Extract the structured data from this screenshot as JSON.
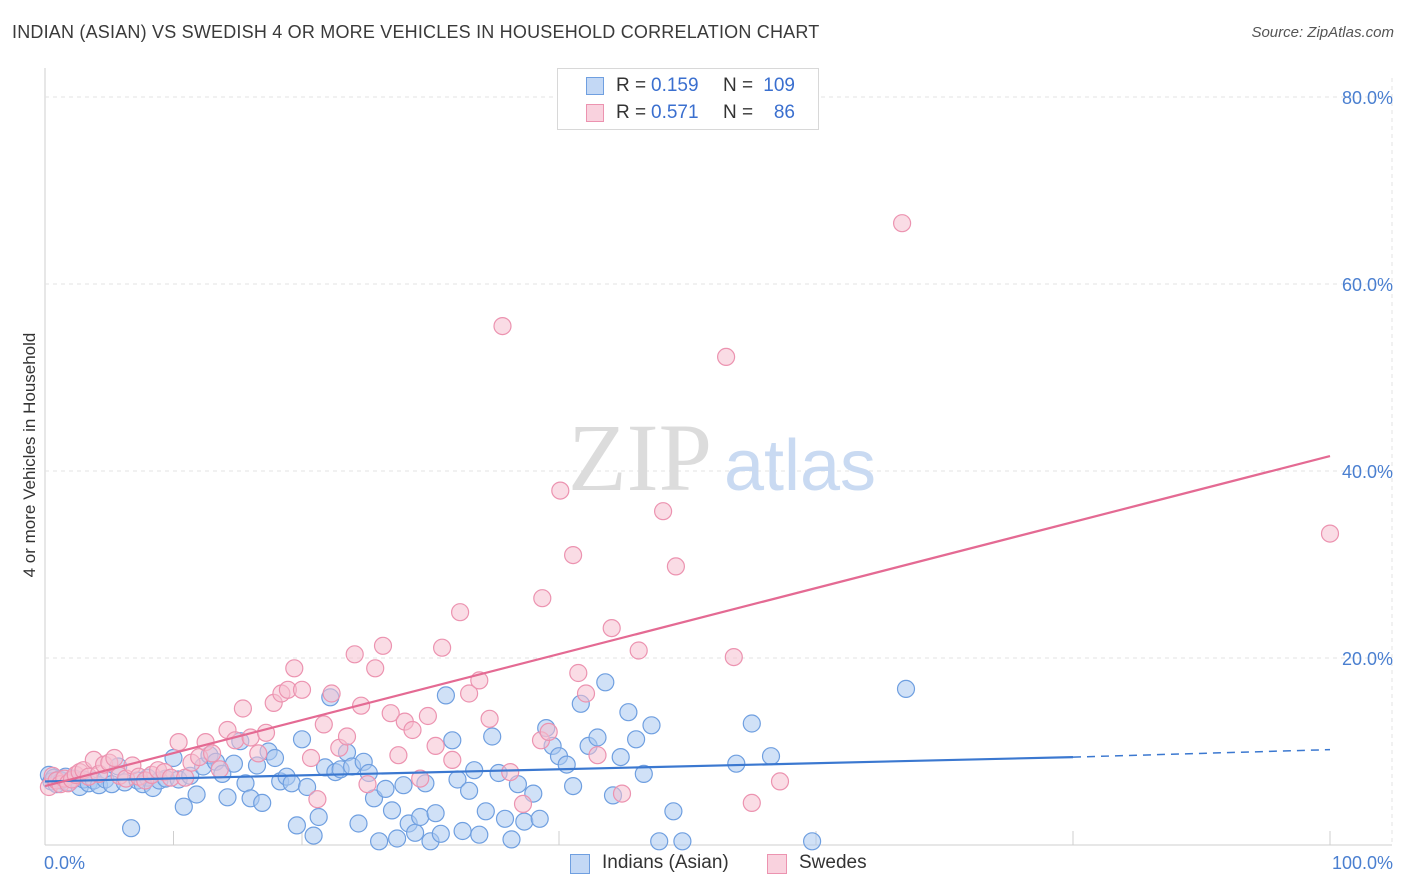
{
  "header": {
    "title": "INDIAN (ASIAN) VS SWEDISH 4 OR MORE VEHICLES IN HOUSEHOLD CORRELATION CHART",
    "source": "Source: ZipAtlas.com"
  },
  "watermark": {
    "zip": "ZIP",
    "atlas": "atlas"
  },
  "legend_top": [
    {
      "r_label": "R =",
      "r_value": "0.159",
      "n_label": "N =",
      "n_value": "109"
    },
    {
      "r_label": "R =",
      "r_value": "0.571",
      "n_label": "N =",
      "n_value": "86"
    }
  ],
  "legend_bottom": [
    "Indians (Asian)",
    "Swedes"
  ],
  "colors": {
    "blue_fill": "#a9c8f0",
    "blue_stroke": "#6f9fe0",
    "blue_line": "#3b78d0",
    "pink_fill": "#f6bfd0",
    "pink_stroke": "#ec93b0",
    "pink_line": "#e46a93",
    "tick_text": "#4a7fd0",
    "grid": "#e3e3e3"
  },
  "chart_data": {
    "type": "scatter",
    "title": "INDIAN (ASIAN) VS SWEDISH 4 OR MORE VEHICLES IN HOUSEHOLD CORRELATION CHART",
    "xlabel": "",
    "ylabel": "4 or more Vehicles in Household",
    "xlim": [
      0,
      100
    ],
    "ylim": [
      0,
      82
    ],
    "x_tick_labels": [
      "0.0%",
      "100.0%"
    ],
    "y_ticks": [
      20,
      40,
      60,
      80
    ],
    "y_tick_labels": [
      "20.0%",
      "40.0%",
      "60.0%",
      "80.0%"
    ],
    "grid": true,
    "legend_position": "top-center",
    "series": [
      {
        "name": "Indians (Asian)",
        "r": 0.159,
        "n": 109,
        "trend": {
          "x0": 0,
          "y0": 6.8,
          "x1": 80,
          "y1": 9.4,
          "dashed_to_x": 100,
          "dashed_y1": 10.2
        },
        "points": [
          [
            0.3,
            7.5
          ],
          [
            0.5,
            6.8
          ],
          [
            0.7,
            7.2
          ],
          [
            0.9,
            6.5
          ],
          [
            1.1,
            7.0
          ],
          [
            1.3,
            6.9
          ],
          [
            1.6,
            7.3
          ],
          [
            1.9,
            6.7
          ],
          [
            2.3,
            7.1
          ],
          [
            2.7,
            6.2
          ],
          [
            3.0,
            7.0
          ],
          [
            3.4,
            6.6
          ],
          [
            3.8,
            6.9
          ],
          [
            4.2,
            6.4
          ],
          [
            4.7,
            7.0
          ],
          [
            5.2,
            6.5
          ],
          [
            5.7,
            8.4
          ],
          [
            6.2,
            6.7
          ],
          [
            6.7,
            1.8
          ],
          [
            7.2,
            6.9
          ],
          [
            7.6,
            6.5
          ],
          [
            8.0,
            7.2
          ],
          [
            8.4,
            6.1
          ],
          [
            8.9,
            6.9
          ],
          [
            9.4,
            7.1
          ],
          [
            10.0,
            9.3
          ],
          [
            10.4,
            7.0
          ],
          [
            10.8,
            4.1
          ],
          [
            11.3,
            7.4
          ],
          [
            11.8,
            5.4
          ],
          [
            12.3,
            8.4
          ],
          [
            12.8,
            9.6
          ],
          [
            13.3,
            8.9
          ],
          [
            13.8,
            7.6
          ],
          [
            14.2,
            5.1
          ],
          [
            14.7,
            8.7
          ],
          [
            15.2,
            11.1
          ],
          [
            15.6,
            6.6
          ],
          [
            16.0,
            5.0
          ],
          [
            16.5,
            8.5
          ],
          [
            16.9,
            4.5
          ],
          [
            17.4,
            10.0
          ],
          [
            17.9,
            9.3
          ],
          [
            18.3,
            6.8
          ],
          [
            18.8,
            7.3
          ],
          [
            19.2,
            6.6
          ],
          [
            19.6,
            2.1
          ],
          [
            20.0,
            11.3
          ],
          [
            20.4,
            6.2
          ],
          [
            20.9,
            1.0
          ],
          [
            21.3,
            3.0
          ],
          [
            21.8,
            8.3
          ],
          [
            22.2,
            15.8
          ],
          [
            22.6,
            7.8
          ],
          [
            23.0,
            8.1
          ],
          [
            23.5,
            9.9
          ],
          [
            23.9,
            8.4
          ],
          [
            24.4,
            2.3
          ],
          [
            24.8,
            8.9
          ],
          [
            25.2,
            7.7
          ],
          [
            25.6,
            5.0
          ],
          [
            26.0,
            0.4
          ],
          [
            26.5,
            6.0
          ],
          [
            27.0,
            3.7
          ],
          [
            27.4,
            0.7
          ],
          [
            27.9,
            6.4
          ],
          [
            28.3,
            2.3
          ],
          [
            28.8,
            1.3
          ],
          [
            29.2,
            3.0
          ],
          [
            29.6,
            6.6
          ],
          [
            30.0,
            0.4
          ],
          [
            30.4,
            3.4
          ],
          [
            30.8,
            1.2
          ],
          [
            31.2,
            16.0
          ],
          [
            31.7,
            11.2
          ],
          [
            32.1,
            7.0
          ],
          [
            32.5,
            1.5
          ],
          [
            33.0,
            5.8
          ],
          [
            33.4,
            8.0
          ],
          [
            33.8,
            1.1
          ],
          [
            34.3,
            3.6
          ],
          [
            34.8,
            11.6
          ],
          [
            35.3,
            7.7
          ],
          [
            35.8,
            2.8
          ],
          [
            36.3,
            0.6
          ],
          [
            36.8,
            6.5
          ],
          [
            37.3,
            2.5
          ],
          [
            38.0,
            5.5
          ],
          [
            38.5,
            2.8
          ],
          [
            39.0,
            12.5
          ],
          [
            39.5,
            10.6
          ],
          [
            40.0,
            9.5
          ],
          [
            40.6,
            8.6
          ],
          [
            41.1,
            6.3
          ],
          [
            41.7,
            15.1
          ],
          [
            42.3,
            10.6
          ],
          [
            43.0,
            11.5
          ],
          [
            43.6,
            17.4
          ],
          [
            44.2,
            5.3
          ],
          [
            44.8,
            9.4
          ],
          [
            45.4,
            14.2
          ],
          [
            46.0,
            11.3
          ],
          [
            46.6,
            7.6
          ],
          [
            47.2,
            12.8
          ],
          [
            47.8,
            0.4
          ],
          [
            48.9,
            3.6
          ],
          [
            49.6,
            0.4
          ],
          [
            53.8,
            8.7
          ],
          [
            55.0,
            13.0
          ],
          [
            56.5,
            9.5
          ],
          [
            59.7,
            0.4
          ],
          [
            67.0,
            16.7
          ]
        ]
      },
      {
        "name": "Swedes",
        "r": 0.571,
        "n": 86,
        "trend": {
          "x0": 0,
          "y0": 6.3,
          "x1": 100,
          "y1": 41.6
        },
        "points": [
          [
            0.3,
            6.2
          ],
          [
            0.6,
            7.4
          ],
          [
            0.9,
            6.9
          ],
          [
            1.2,
            6.5
          ],
          [
            1.5,
            7.1
          ],
          [
            1.8,
            6.6
          ],
          [
            2.1,
            7.0
          ],
          [
            2.4,
            7.5
          ],
          [
            2.7,
            7.8
          ],
          [
            3.0,
            8.0
          ],
          [
            3.4,
            7.3
          ],
          [
            3.8,
            9.1
          ],
          [
            4.2,
            7.6
          ],
          [
            4.6,
            8.6
          ],
          [
            5.0,
            8.8
          ],
          [
            5.4,
            9.3
          ],
          [
            5.8,
            7.4
          ],
          [
            6.3,
            7.1
          ],
          [
            6.8,
            8.5
          ],
          [
            7.3,
            7.3
          ],
          [
            7.8,
            6.9
          ],
          [
            8.3,
            7.5
          ],
          [
            8.8,
            8.0
          ],
          [
            9.3,
            7.8
          ],
          [
            9.8,
            7.2
          ],
          [
            10.4,
            11.0
          ],
          [
            10.9,
            7.2
          ],
          [
            11.4,
            8.8
          ],
          [
            12.0,
            9.4
          ],
          [
            12.5,
            11.0
          ],
          [
            13.0,
            9.8
          ],
          [
            13.6,
            8.1
          ],
          [
            14.2,
            12.3
          ],
          [
            14.8,
            11.2
          ],
          [
            15.4,
            14.6
          ],
          [
            16.0,
            11.5
          ],
          [
            16.6,
            9.8
          ],
          [
            17.2,
            12.0
          ],
          [
            17.8,
            15.2
          ],
          [
            18.4,
            16.2
          ],
          [
            18.9,
            16.6
          ],
          [
            19.4,
            18.9
          ],
          [
            20.0,
            16.6
          ],
          [
            20.7,
            9.3
          ],
          [
            21.2,
            4.9
          ],
          [
            21.7,
            12.9
          ],
          [
            22.3,
            16.2
          ],
          [
            22.9,
            10.4
          ],
          [
            23.5,
            11.6
          ],
          [
            24.1,
            20.4
          ],
          [
            24.6,
            14.9
          ],
          [
            25.1,
            6.5
          ],
          [
            25.7,
            18.9
          ],
          [
            26.3,
            21.3
          ],
          [
            26.9,
            14.1
          ],
          [
            27.5,
            9.6
          ],
          [
            28.0,
            13.2
          ],
          [
            28.6,
            12.3
          ],
          [
            29.2,
            7.1
          ],
          [
            29.8,
            13.8
          ],
          [
            30.4,
            10.6
          ],
          [
            30.9,
            21.1
          ],
          [
            31.7,
            9.1
          ],
          [
            32.3,
            24.9
          ],
          [
            33.0,
            16.2
          ],
          [
            33.8,
            17.6
          ],
          [
            34.6,
            13.5
          ],
          [
            35.6,
            55.5
          ],
          [
            36.2,
            7.8
          ],
          [
            37.2,
            4.4
          ],
          [
            38.6,
            11.2
          ],
          [
            38.7,
            26.4
          ],
          [
            39.2,
            12.1
          ],
          [
            40.1,
            37.9
          ],
          [
            41.1,
            31.0
          ],
          [
            41.5,
            18.4
          ],
          [
            42.1,
            16.2
          ],
          [
            43.0,
            9.6
          ],
          [
            44.1,
            23.2
          ],
          [
            44.9,
            5.5
          ],
          [
            46.2,
            20.8
          ],
          [
            48.1,
            35.7
          ],
          [
            49.1,
            29.8
          ],
          [
            53.0,
            52.2
          ],
          [
            53.6,
            20.1
          ],
          [
            55.0,
            4.5
          ],
          [
            57.2,
            6.8
          ],
          [
            66.7,
            66.5
          ],
          [
            100.0,
            33.3
          ]
        ]
      }
    ]
  }
}
